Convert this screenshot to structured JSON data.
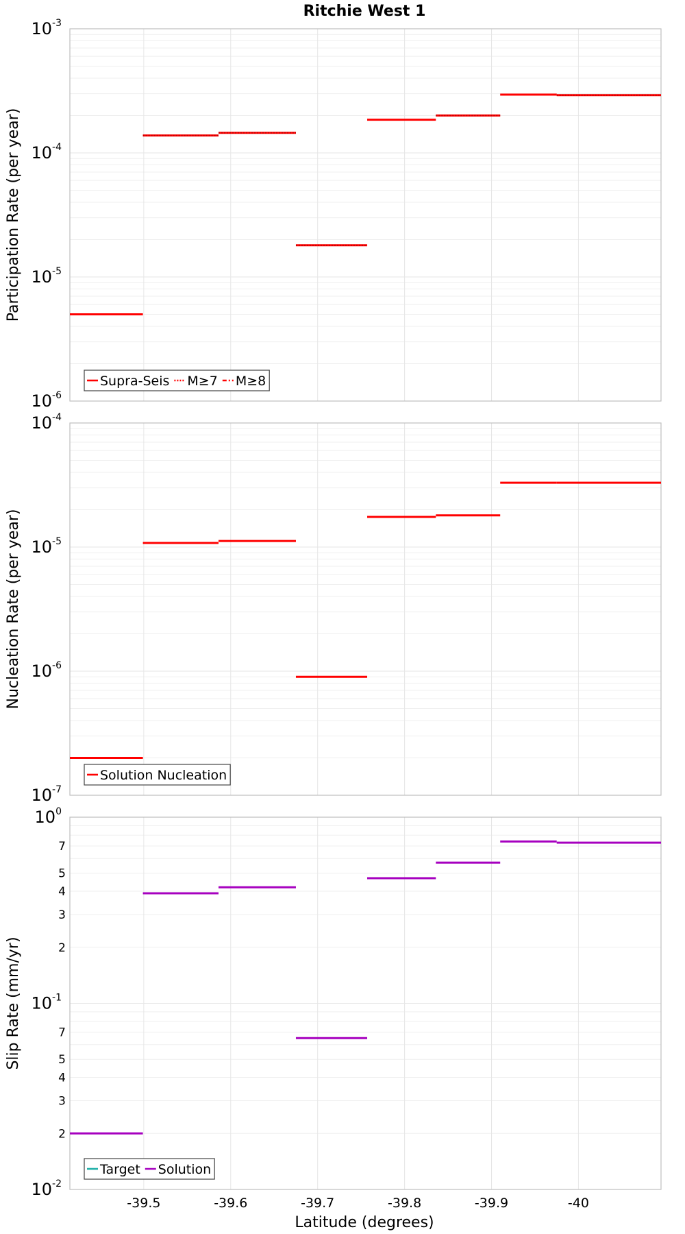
{
  "title": "Ritchie West 1",
  "xlabel": "Latitude (degrees)",
  "colors": {
    "red": "#ff0000",
    "magenta": "#a600bf",
    "teal": "#1fb0a8",
    "grid": "#e6e6e6",
    "frame": "#bdbdbd"
  },
  "chart_data": [
    {
      "type": "line",
      "ylabel": "Participation Rate (per year)",
      "yscale": "log",
      "ylim": [
        1e-06,
        0.001
      ],
      "xlim": [
        -39.415,
        -40.095
      ],
      "xticks": [
        -39.5,
        -39.6,
        -39.7,
        -39.8,
        -39.9,
        -40
      ],
      "xtick_labels": [
        "-39.5",
        "-39.6",
        "-39.7",
        "-39.8",
        "-39.9",
        "-40"
      ],
      "ytick_labels": [
        {
          "base": "10",
          "exp": "-3",
          "value": 0.001
        },
        {
          "base": "10",
          "exp": "-4",
          "value": 0.0001
        },
        {
          "base": "10",
          "exp": "-5",
          "value": 1e-05
        },
        {
          "base": "10",
          "exp": "-6",
          "value": 1e-06
        }
      ],
      "legend": {
        "position": "bottom-left",
        "entries": [
          {
            "label": "Supra-Seis",
            "style": "solid",
            "color": "#ff0000"
          },
          {
            "label": "M≥7",
            "style": "dotted",
            "color": "#ff0000"
          },
          {
            "label": "M≥8",
            "style": "dashdot",
            "color": "#ff0000"
          }
        ]
      },
      "series": [
        {
          "name": "Supra-Seis",
          "style": "solid",
          "color": "#ff0000",
          "segments": [
            {
              "x0": -39.415,
              "x1": -39.499,
              "y": 5e-06
            },
            {
              "x0": -39.499,
              "x1": -39.586,
              "y": 0.000138
            },
            {
              "x0": -39.586,
              "x1": -39.675,
              "y": 0.000145
            },
            {
              "x0": -39.675,
              "x1": -39.757,
              "y": 1.8e-05
            },
            {
              "x0": -39.757,
              "x1": -39.836,
              "y": 0.000185
            },
            {
              "x0": -39.836,
              "x1": -39.91,
              "y": 0.0002
            },
            {
              "x0": -39.91,
              "x1": -39.975,
              "y": 0.000295
            },
            {
              "x0": -39.975,
              "x1": -40.095,
              "y": 0.000292
            }
          ]
        },
        {
          "name": "M≥7",
          "style": "dotted",
          "color": "#ff0000",
          "segments": [
            {
              "x0": -39.499,
              "x1": -39.586,
              "y": 0.000138
            },
            {
              "x0": -39.586,
              "x1": -39.675,
              "y": 0.000145
            },
            {
              "x0": -39.675,
              "x1": -39.757,
              "y": 1.8e-05
            },
            {
              "x0": -39.836,
              "x1": -39.91,
              "y": 0.0002
            },
            {
              "x0": -39.975,
              "x1": -40.095,
              "y": 0.000292
            }
          ]
        }
      ]
    },
    {
      "type": "line",
      "ylabel": "Nucleation Rate (per year)",
      "yscale": "log",
      "ylim": [
        1e-07,
        0.0001
      ],
      "xlim": [
        -39.415,
        -40.095
      ],
      "xticks": [
        -39.5,
        -39.6,
        -39.7,
        -39.8,
        -39.9,
        -40
      ],
      "ytick_labels": [
        {
          "base": "10",
          "exp": "-4",
          "value": 0.0001
        },
        {
          "base": "10",
          "exp": "-5",
          "value": 1e-05
        },
        {
          "base": "10",
          "exp": "-6",
          "value": 1e-06
        },
        {
          "base": "10",
          "exp": "-7",
          "value": 1e-07
        }
      ],
      "legend": {
        "position": "bottom-left",
        "entries": [
          {
            "label": "Solution Nucleation",
            "style": "solid",
            "color": "#ff0000"
          }
        ]
      },
      "series": [
        {
          "name": "Solution Nucleation",
          "style": "solid",
          "color": "#ff0000",
          "segments": [
            {
              "x0": -39.415,
              "x1": -39.499,
              "y": 2e-07
            },
            {
              "x0": -39.499,
              "x1": -39.586,
              "y": 1.08e-05
            },
            {
              "x0": -39.586,
              "x1": -39.675,
              "y": 1.12e-05
            },
            {
              "x0": -39.675,
              "x1": -39.757,
              "y": 9e-07
            },
            {
              "x0": -39.757,
              "x1": -39.836,
              "y": 1.75e-05
            },
            {
              "x0": -39.836,
              "x1": -39.91,
              "y": 1.8e-05
            },
            {
              "x0": -39.91,
              "x1": -39.975,
              "y": 3.3e-05
            },
            {
              "x0": -39.975,
              "x1": -40.095,
              "y": 3.3e-05
            }
          ]
        }
      ]
    },
    {
      "type": "line",
      "ylabel": "Slip Rate (mm/yr)",
      "yscale": "log",
      "ylim": [
        0.01,
        1
      ],
      "xlim": [
        -39.415,
        -40.095
      ],
      "xticks": [
        -39.5,
        -39.6,
        -39.7,
        -39.8,
        -39.9,
        -40
      ],
      "ytick_labels": [
        {
          "base": "10",
          "exp": "0",
          "value": 1
        },
        {
          "base": "10",
          "exp": "-1",
          "value": 0.1
        },
        {
          "base": "10",
          "exp": "-2",
          "value": 0.01
        }
      ],
      "minor_tick_labels": [
        {
          "label": "7",
          "value": 0.7
        },
        {
          "label": "5",
          "value": 0.5
        },
        {
          "label": "4",
          "value": 0.4
        },
        {
          "label": "3",
          "value": 0.3
        },
        {
          "label": "2",
          "value": 0.2
        },
        {
          "label": "7",
          "value": 0.07
        },
        {
          "label": "5",
          "value": 0.05
        },
        {
          "label": "4",
          "value": 0.04
        },
        {
          "label": "3",
          "value": 0.03
        },
        {
          "label": "2",
          "value": 0.02
        }
      ],
      "legend": {
        "position": "bottom-left",
        "entries": [
          {
            "label": "Target",
            "style": "solid",
            "color": "#1fb0a8"
          },
          {
            "label": "Solution",
            "style": "solid",
            "color": "#a600bf"
          }
        ]
      },
      "series": [
        {
          "name": "Solution",
          "style": "solid",
          "color": "#a600bf",
          "segments": [
            {
              "x0": -39.415,
              "x1": -39.499,
              "y": 0.02
            },
            {
              "x0": -39.499,
              "x1": -39.586,
              "y": 0.39
            },
            {
              "x0": -39.586,
              "x1": -39.675,
              "y": 0.42
            },
            {
              "x0": -39.675,
              "x1": -39.757,
              "y": 0.065
            },
            {
              "x0": -39.757,
              "x1": -39.836,
              "y": 0.47
            },
            {
              "x0": -39.836,
              "x1": -39.91,
              "y": 0.57
            },
            {
              "x0": -39.91,
              "x1": -39.975,
              "y": 0.74
            },
            {
              "x0": -39.975,
              "x1": -40.095,
              "y": 0.73
            }
          ]
        }
      ]
    }
  ]
}
